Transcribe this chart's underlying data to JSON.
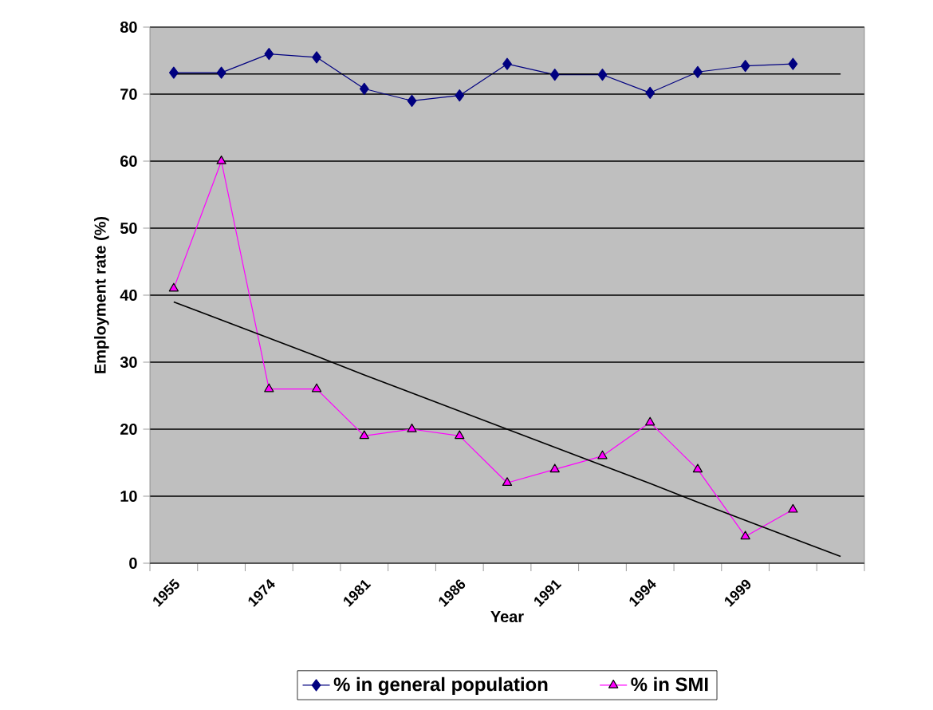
{
  "chart_data": {
    "type": "line",
    "xlabel": "Year",
    "ylabel": "Employment rate (%)",
    "categories": [
      "1955",
      null,
      "1974",
      null,
      "1981",
      null,
      "1986",
      null,
      "1991",
      null,
      "1994",
      null,
      "1999",
      null,
      null
    ],
    "ylim": [
      0,
      80
    ],
    "yticks": [
      0,
      10,
      20,
      30,
      40,
      50,
      60,
      70,
      80
    ],
    "grid": "y",
    "legend": "bottom",
    "line_style": "solid",
    "series": [
      {
        "name": "% in general population",
        "color": "#000080",
        "marker": "diamond",
        "values": [
          73.2,
          73.2,
          76,
          75.5,
          70.8,
          69,
          69.8,
          74.5,
          72.9,
          72.9,
          70.2,
          73.3,
          74.2,
          74.5,
          null
        ]
      },
      {
        "name": "% in SMI",
        "color": "#ff00ff",
        "marker": "triangle",
        "values": [
          41,
          60,
          26,
          26,
          19,
          20,
          19,
          12,
          14,
          16,
          21,
          14,
          4,
          8,
          null
        ]
      },
      {
        "type": "line",
        "color": "#000000",
        "marker": "none",
        "values": [
          73,
          73,
          73,
          73,
          73,
          73,
          73,
          73,
          73,
          73,
          73,
          73,
          73,
          73,
          73
        ]
      },
      {
        "type": "line",
        "color": "#000000",
        "marker": "none",
        "values": [
          39,
          36.3,
          33.6,
          30.9,
          28.1,
          25.4,
          22.7,
          20,
          17.3,
          14.6,
          11.9,
          9.1,
          6.4,
          3.7,
          1
        ]
      }
    ]
  }
}
